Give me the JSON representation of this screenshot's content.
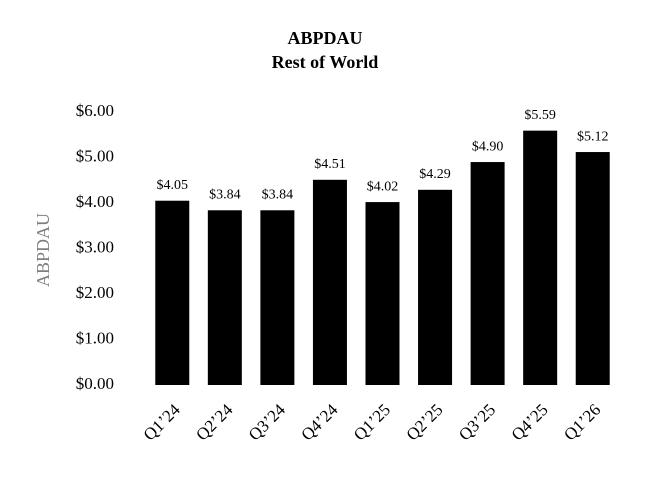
{
  "chart_data": {
    "type": "bar",
    "title": "ABPDAU",
    "subtitle": "Rest of World",
    "y_label": "ABPDAU",
    "categories": [
      "Q1’24",
      "Q2’24",
      "Q3’24",
      "Q4’24",
      "Q1’25",
      "Q2’25",
      "Q3’25",
      "Q4’25",
      "Q1’26"
    ],
    "values": [
      4.05,
      3.84,
      3.84,
      4.51,
      4.02,
      4.29,
      4.9,
      5.59,
      5.12
    ],
    "value_labels": [
      "$4.05",
      "$3.84",
      "$3.84",
      "$4.51",
      "$4.02",
      "$4.29",
      "$4.90",
      "$5.59",
      "$5.12"
    ],
    "color": "#000000",
    "ylim": [
      0,
      6
    ],
    "yticks": [
      {
        "value": 0,
        "label": "$0.00"
      },
      {
        "value": 1,
        "label": "$1.00"
      },
      {
        "value": 2,
        "label": "$2.00"
      },
      {
        "value": 3,
        "label": "$3.00"
      },
      {
        "value": 4,
        "label": "$4.00"
      },
      {
        "value": 5,
        "label": "$5.00"
      },
      {
        "value": 6,
        "label": "$6.00"
      }
    ],
    "grid": false
  }
}
